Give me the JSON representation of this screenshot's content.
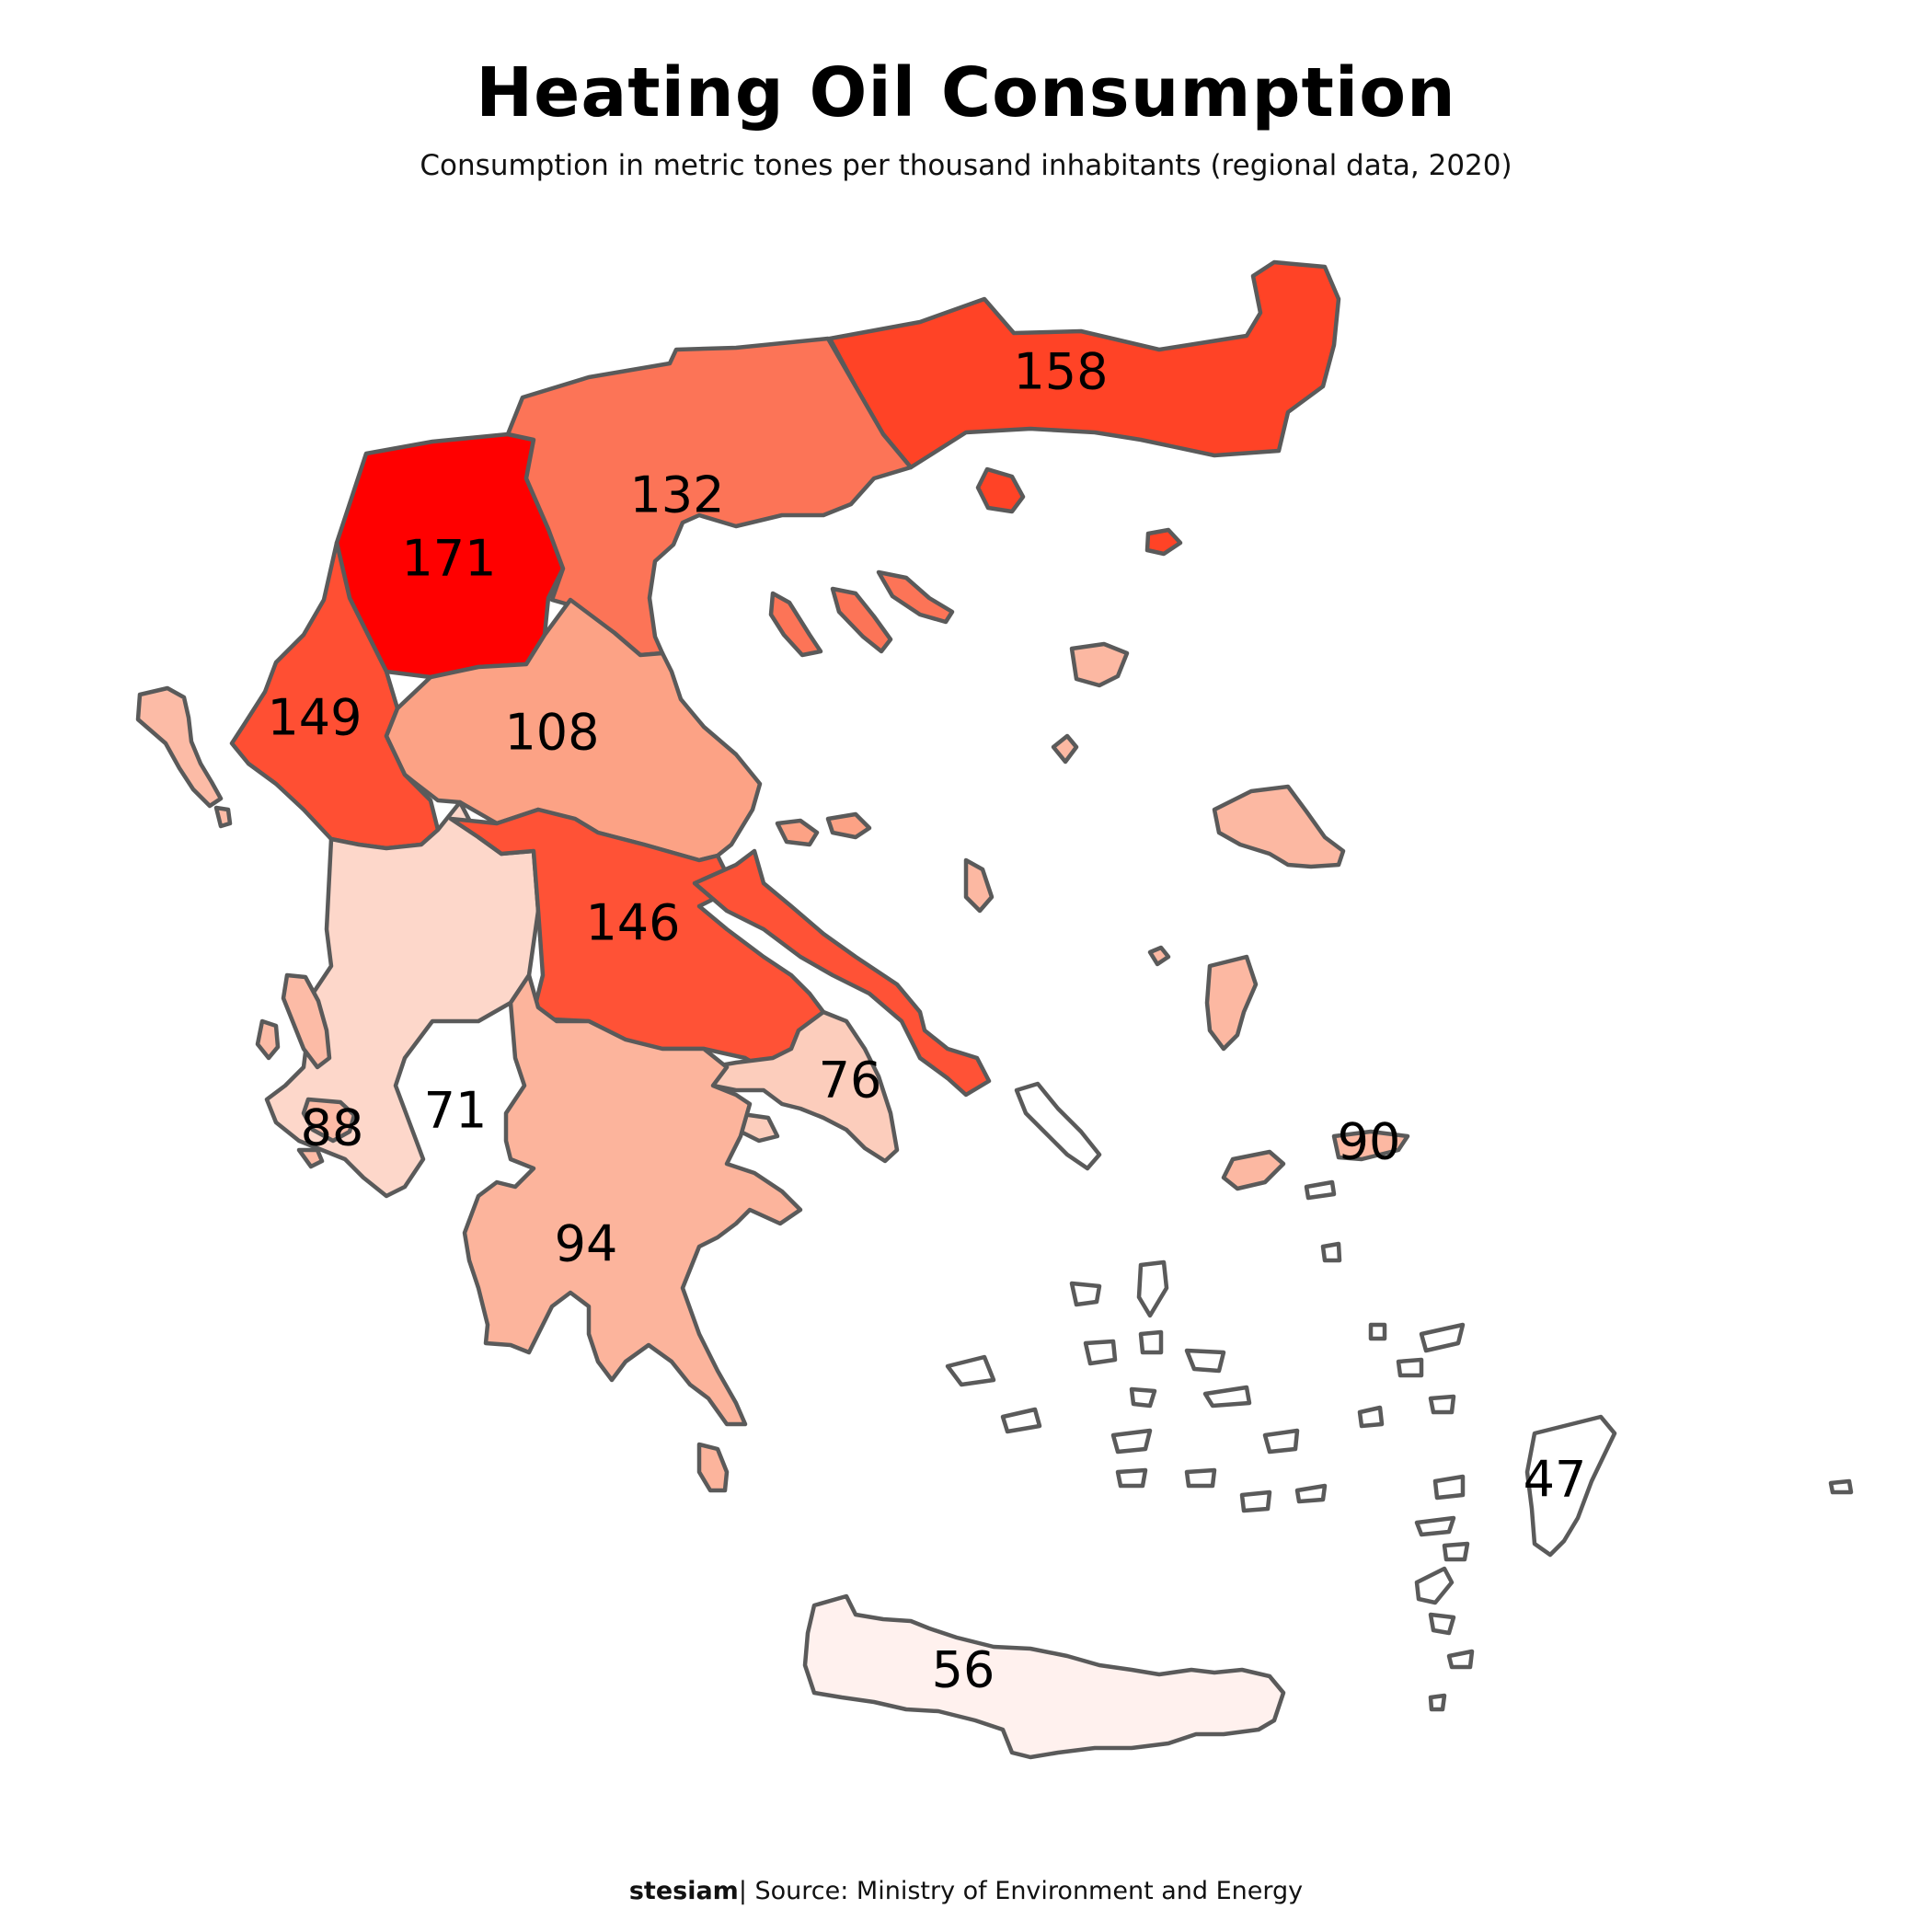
{
  "title": "Heating Oil Consumption",
  "subtitle": "Consumption in metric tones per thousand inhabitants (regional data, 2020)",
  "footer": {
    "author": "stesiam",
    "separator": "|",
    "source": "Source: Ministry of Environment and Energy"
  },
  "colors": {
    "outline": "#5a5a5a",
    "scale_low": "#fff1ee",
    "scale_high": "#ff0000"
  },
  "regions": [
    {
      "id": "west-macedonia",
      "value": "171",
      "fill": "#ff0000"
    },
    {
      "id": "east-macedonia-thrace",
      "value": "158",
      "fill": "#ff4326"
    },
    {
      "id": "epirus",
      "value": "149",
      "fill": "#ff4f33"
    },
    {
      "id": "central-greece",
      "value": "146",
      "fill": "#ff5236"
    },
    {
      "id": "central-macedonia",
      "value": "132",
      "fill": "#fc7457"
    },
    {
      "id": "thessaly",
      "value": "108",
      "fill": "#fca285"
    },
    {
      "id": "peloponnese",
      "value": "94",
      "fill": "#fcb49c"
    },
    {
      "id": "north-aegean",
      "value": "90",
      "fill": "#fcb8a2"
    },
    {
      "id": "ionian-islands",
      "value": "88",
      "fill": "#fcbba6"
    },
    {
      "id": "attica",
      "value": "76",
      "fill": "#fccdbc"
    },
    {
      "id": "west-greece",
      "value": "71",
      "fill": "#fdd7ca"
    },
    {
      "id": "crete",
      "value": "56",
      "fill": "#fff1ee"
    },
    {
      "id": "south-aegean",
      "value": "47",
      "fill": "#ffffff"
    }
  ]
}
